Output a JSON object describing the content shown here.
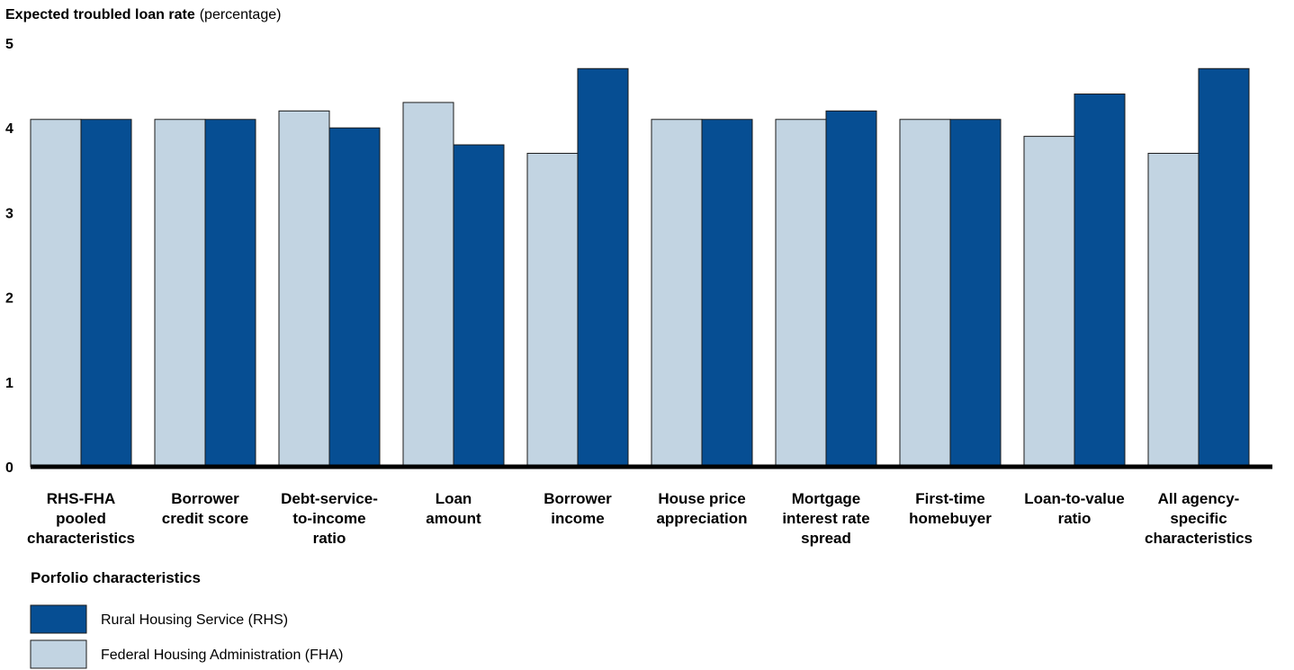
{
  "chart_data": {
    "type": "bar",
    "title": "Expected troubled loan rate",
    "title_unit": "(percentage)",
    "xlabel": "Porfolio characteristics",
    "ylim": [
      0,
      5
    ],
    "yticks": [
      "0",
      "1",
      "2",
      "3",
      "4",
      "5"
    ],
    "categories": [
      [
        "RHS-FHA",
        "pooled",
        "characteristics"
      ],
      [
        "Borrower",
        "credit score"
      ],
      [
        "Debt-service-",
        "to-income",
        "ratio"
      ],
      [
        "Loan",
        "amount"
      ],
      [
        "Borrower",
        "income"
      ],
      [
        "House price",
        "appreciation"
      ],
      [
        "Mortgage",
        "interest rate",
        "spread"
      ],
      [
        "First-time",
        "homebuyer"
      ],
      [
        "Loan-to-value",
        "ratio"
      ],
      [
        "All agency-",
        "specific",
        "characteristics"
      ]
    ],
    "series": [
      {
        "name": "Federal Housing Administration (FHA)",
        "color": "#c2d4e2",
        "values": [
          4.1,
          4.1,
          4.2,
          4.3,
          3.7,
          4.1,
          4.1,
          4.1,
          3.9,
          3.7
        ]
      },
      {
        "name": "Rural Housing Service (RHS)",
        "color": "#064e93",
        "values": [
          4.1,
          4.1,
          4.0,
          3.8,
          4.7,
          4.1,
          4.2,
          4.1,
          4.4,
          4.7
        ]
      }
    ],
    "legend_order": [
      1,
      0
    ],
    "legend_position": "bottom-left",
    "grid": false
  }
}
